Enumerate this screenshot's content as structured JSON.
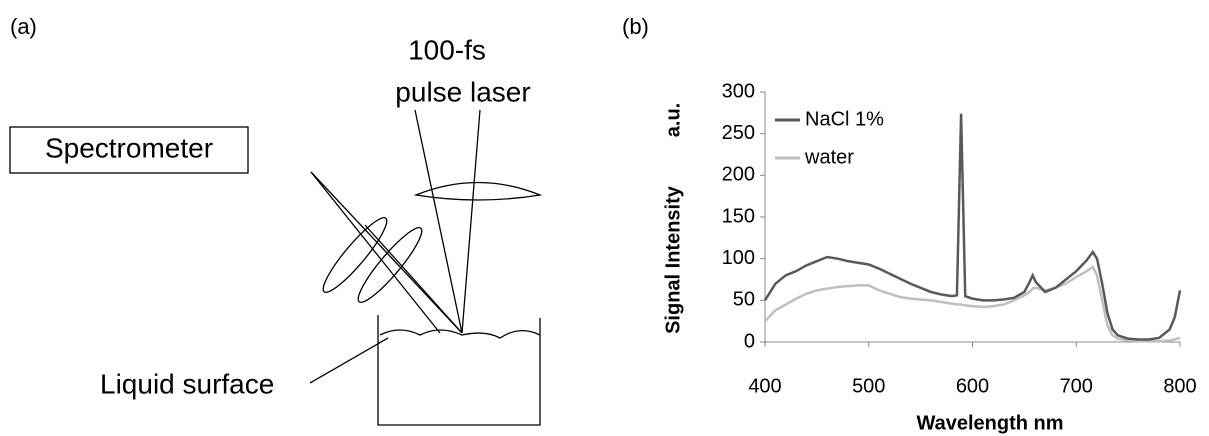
{
  "panel_a": {
    "label": "(a)",
    "laser_line1": "100-fs",
    "laser_line2": "pulse laser",
    "spectrometer": "Spectrometer",
    "liquid_surface": "Liquid surface"
  },
  "chart_data": {
    "type": "line",
    "panel_label": "(b)",
    "xlabel": "Wavelength   nm",
    "ylabel": "Signal Intensity",
    "yunit": "a.u.",
    "x": [
      400,
      410,
      420,
      430,
      440,
      450,
      460,
      470,
      480,
      490,
      500,
      510,
      520,
      530,
      540,
      550,
      560,
      570,
      580,
      585,
      589,
      593,
      600,
      610,
      620,
      630,
      640,
      650,
      655,
      658,
      661,
      670,
      680,
      690,
      700,
      710,
      716,
      720,
      725,
      730,
      735,
      740,
      750,
      760,
      770,
      780,
      790,
      795,
      800
    ],
    "series": [
      {
        "name": "NaCl 1%",
        "color": "#595959",
        "values": [
          50,
          70,
          80,
          85,
          92,
          97,
          102,
          100,
          97,
          95,
          93,
          88,
          82,
          76,
          70,
          65,
          60,
          57,
          55,
          56,
          274,
          55,
          52,
          50,
          50,
          51,
          53,
          60,
          72,
          80,
          72,
          60,
          65,
          75,
          85,
          98,
          108,
          100,
          70,
          35,
          15,
          8,
          4,
          3,
          3,
          5,
          15,
          30,
          62
        ]
      },
      {
        "name": "water",
        "color": "#bfbfbf",
        "values": [
          25,
          38,
          45,
          52,
          58,
          62,
          64,
          66,
          67,
          68,
          68,
          62,
          58,
          54,
          52,
          51,
          50,
          48,
          46,
          45,
          45,
          44,
          43,
          42,
          43,
          45,
          50,
          56,
          60,
          64,
          65,
          62,
          65,
          70,
          78,
          85,
          90,
          80,
          50,
          20,
          8,
          4,
          2,
          1,
          1,
          1,
          2,
          3,
          5
        ]
      }
    ],
    "xlim": [
      400,
      800
    ],
    "xticks": [
      400,
      500,
      600,
      700,
      800
    ],
    "ylim": [
      0,
      300
    ],
    "yticks": [
      0,
      50,
      100,
      150,
      200,
      250,
      300
    ],
    "legend": "upper left"
  }
}
